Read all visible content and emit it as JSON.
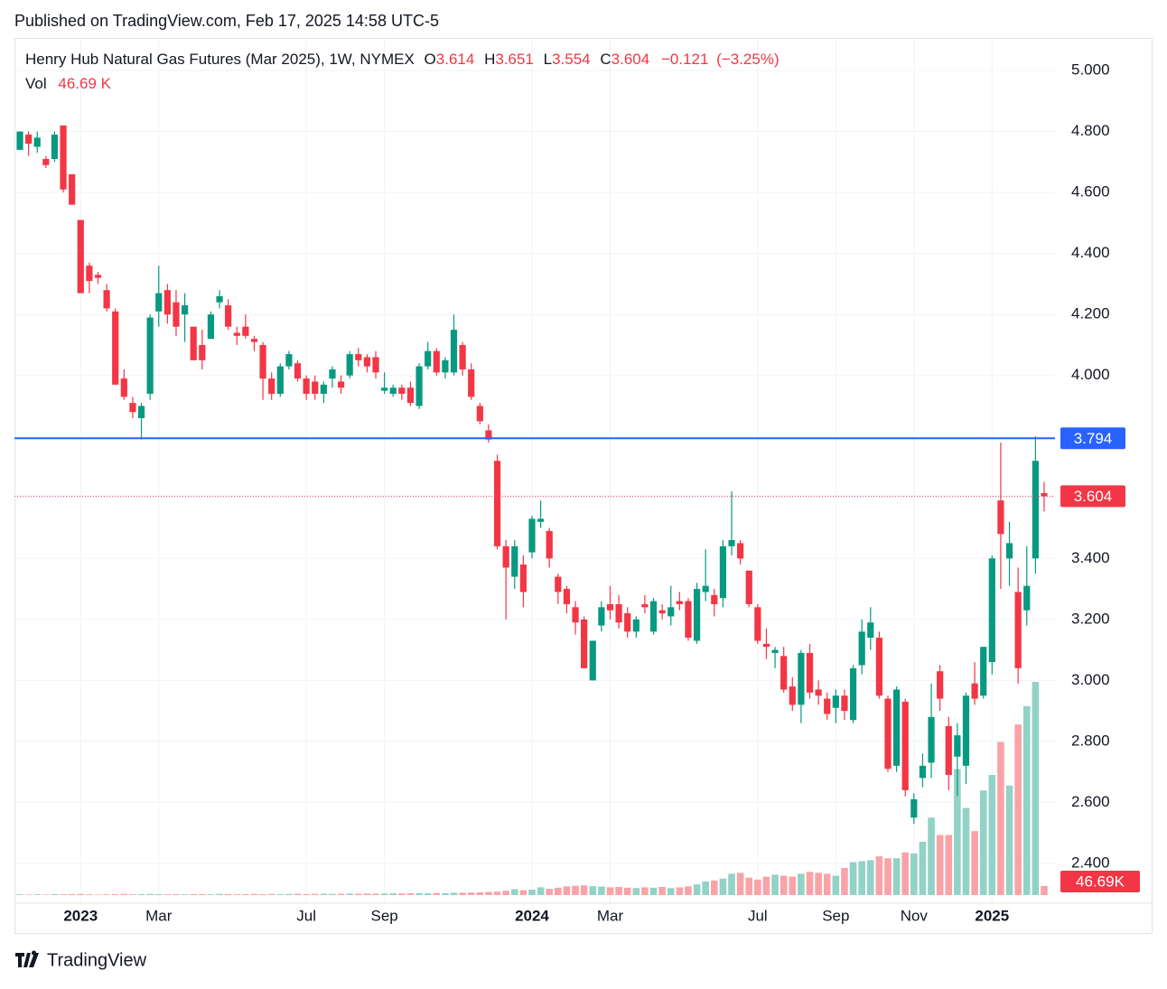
{
  "published": "Published on TradingView.com, Feb 17, 2025 14:58 UTC-5",
  "brand": "TradingView",
  "chart_data": {
    "type": "candlestick",
    "title": "Henry Hub Natural Gas Futures (Mar 2025), 1W, NYMEX",
    "ohlc_keys": [
      "O",
      "H",
      "L",
      "C"
    ],
    "change": {
      "value": -0.121,
      "label": "−0.121"
    },
    "change_pct": {
      "value": -3.25,
      "label": "(−3.25%)"
    },
    "volume_name": "Vol",
    "last_volume": {
      "value": 46.69,
      "label": "46.69 K",
      "tag": "46.69K"
    },
    "up_color": "#089981",
    "down_color": "#f23645",
    "volume_up_color": "#92d2c7",
    "volume_down_color": "#f9a3a8",
    "hline": {
      "value": 3.794,
      "color": "#2962ff"
    },
    "ylim": [
      2.296,
      5.107
    ],
    "yticks": [
      {
        "value": 2.4,
        "label": "2.400"
      },
      {
        "value": 2.6,
        "label": "2.600"
      },
      {
        "value": 2.8,
        "label": "2.800"
      },
      {
        "value": 3.0,
        "label": "3.000"
      },
      {
        "value": 3.2,
        "label": "3.200"
      },
      {
        "value": 3.4,
        "label": "3.400"
      },
      {
        "value": 3.6,
        "label": "3.600"
      },
      {
        "value": 3.8,
        "label": "3.800"
      },
      {
        "value": 4.0,
        "label": "4.000"
      },
      {
        "value": 4.2,
        "label": "4.200"
      },
      {
        "value": 4.4,
        "label": "4.400"
      },
      {
        "value": 4.6,
        "label": "4.600"
      },
      {
        "value": 4.8,
        "label": "4.800"
      },
      {
        "value": 5.0,
        "label": "5.000"
      }
    ],
    "grid": true,
    "categories": [
      null,
      null,
      null,
      null,
      null,
      null,
      null,
      "2023",
      null,
      null,
      null,
      null,
      null,
      null,
      null,
      null,
      "Mar",
      null,
      null,
      null,
      null,
      null,
      null,
      null,
      null,
      null,
      null,
      null,
      null,
      null,
      null,
      null,
      null,
      "Jul",
      null,
      null,
      null,
      null,
      null,
      null,
      null,
      null,
      "Sep",
      null,
      null,
      null,
      null,
      null,
      null,
      null,
      null,
      null,
      null,
      null,
      null,
      null,
      null,
      null,
      null,
      "2024",
      null,
      null,
      null,
      null,
      null,
      null,
      null,
      null,
      "Mar",
      null,
      null,
      null,
      null,
      null,
      null,
      null,
      null,
      null,
      null,
      null,
      null,
      null,
      null,
      null,
      null,
      "Jul",
      null,
      null,
      null,
      null,
      null,
      null,
      null,
      null,
      "Sep",
      null,
      null,
      null,
      null,
      null,
      null,
      null,
      null,
      "Nov",
      null,
      null,
      null,
      null,
      null,
      null,
      null,
      null,
      "2025",
      null,
      null,
      null,
      null,
      null,
      null
    ],
    "series": [
      {
        "open": [
          4.74,
          4.79,
          4.75,
          4.71,
          4.71,
          4.82,
          4.66,
          4.51,
          4.36,
          4.33,
          4.28,
          4.21,
          3.99,
          3.91,
          3.86,
          3.94,
          4.21,
          4.28,
          4.24,
          4.2,
          4.16,
          4.1,
          4.12,
          4.24,
          4.23,
          4.14,
          4.16,
          4.12,
          4.1,
          3.99,
          3.94,
          4.03,
          4.04,
          3.99,
          3.98,
          3.94,
          3.99,
          3.98,
          4.0,
          4.07,
          4.06,
          4.06,
          3.95,
          3.94,
          3.96,
          3.96,
          3.9,
          4.03,
          4.08,
          4.01,
          4.01,
          4.1,
          4.02,
          3.9,
          3.82,
          3.72,
          3.44,
          3.34,
          3.38,
          3.42,
          3.52,
          3.49,
          3.34,
          3.3,
          3.24,
          3.2,
          3.0,
          3.18,
          3.25,
          3.25,
          3.22,
          3.16,
          3.25,
          3.16,
          3.23,
          3.21,
          3.26,
          3.26,
          3.13,
          3.29,
          3.28,
          3.27,
          3.44,
          3.45,
          3.36,
          3.24,
          3.12,
          3.09,
          3.08,
          2.98,
          2.92,
          3.09,
          2.97,
          2.94,
          2.91,
          2.95,
          2.87,
          3.05,
          3.14,
          3.14,
          2.94,
          2.72,
          2.93,
          2.55,
          2.68,
          2.73,
          3.03,
          2.85,
          2.75,
          2.72,
          2.99,
          2.95,
          3.06,
          3.59,
          3.4,
          3.29,
          3.23,
          3.4,
          3.614
        ],
        "high": [
          4.8,
          4.8,
          4.8,
          4.72,
          4.8,
          4.82,
          4.66,
          4.51,
          4.37,
          4.34,
          4.3,
          4.22,
          4.02,
          3.93,
          3.91,
          4.2,
          4.36,
          4.3,
          4.28,
          4.27,
          4.16,
          4.15,
          4.21,
          4.28,
          4.25,
          4.16,
          4.2,
          4.13,
          4.11,
          4.01,
          4.04,
          4.08,
          4.05,
          4.0,
          4.0,
          3.98,
          4.03,
          4.0,
          4.08,
          4.09,
          4.07,
          4.08,
          4.01,
          3.97,
          3.97,
          3.98,
          4.04,
          4.11,
          4.09,
          4.06,
          4.2,
          4.11,
          4.04,
          3.91,
          3.84,
          3.74,
          3.46,
          3.46,
          3.41,
          3.54,
          3.59,
          3.5,
          3.35,
          3.31,
          3.26,
          3.21,
          3.13,
          3.26,
          3.31,
          3.28,
          3.24,
          3.21,
          3.28,
          3.27,
          3.25,
          3.31,
          3.29,
          3.27,
          3.32,
          3.43,
          3.3,
          3.46,
          3.62,
          3.46,
          3.36,
          3.25,
          3.17,
          3.11,
          3.11,
          3.01,
          3.1,
          3.12,
          3.0,
          2.96,
          2.97,
          2.97,
          3.05,
          3.2,
          3.24,
          3.16,
          2.95,
          2.98,
          2.94,
          2.63,
          2.76,
          2.99,
          3.05,
          2.88,
          2.86,
          2.96,
          3.06,
          3.11,
          3.41,
          3.78,
          3.52,
          3.37,
          3.44,
          3.8,
          3.651
        ],
        "low": [
          4.74,
          4.72,
          4.73,
          4.68,
          4.7,
          4.6,
          4.56,
          4.27,
          4.27,
          4.3,
          4.21,
          3.97,
          3.92,
          3.86,
          3.79,
          3.92,
          4.16,
          4.17,
          4.13,
          4.11,
          4.05,
          4.02,
          4.12,
          4.22,
          4.15,
          4.1,
          4.12,
          4.08,
          3.92,
          3.92,
          3.93,
          4.02,
          3.98,
          3.92,
          3.92,
          3.91,
          3.96,
          3.94,
          3.99,
          4.03,
          4.01,
          3.99,
          3.94,
          3.93,
          3.92,
          3.9,
          3.89,
          4.02,
          4.0,
          3.99,
          4.0,
          4.0,
          3.92,
          3.84,
          3.78,
          3.43,
          3.2,
          3.3,
          3.24,
          3.4,
          3.5,
          3.37,
          3.25,
          3.22,
          3.15,
          3.04,
          3.0,
          3.16,
          3.2,
          3.17,
          3.14,
          3.14,
          3.22,
          3.15,
          3.2,
          3.18,
          3.23,
          3.13,
          3.12,
          3.26,
          3.21,
          3.24,
          3.41,
          3.38,
          3.24,
          3.12,
          3.07,
          3.04,
          2.96,
          2.9,
          2.86,
          2.94,
          2.92,
          2.87,
          2.86,
          2.87,
          2.86,
          3.02,
          3.1,
          2.94,
          2.7,
          2.7,
          2.62,
          2.53,
          2.65,
          2.68,
          2.9,
          2.64,
          2.62,
          2.66,
          2.92,
          2.94,
          3.02,
          3.3,
          3.31,
          2.99,
          3.18,
          3.35,
          3.554
        ],
        "close": [
          4.8,
          4.76,
          4.78,
          4.69,
          4.79,
          4.61,
          4.56,
          4.27,
          4.31,
          4.32,
          4.22,
          3.97,
          3.93,
          3.88,
          3.9,
          4.19,
          4.27,
          4.2,
          4.16,
          4.23,
          4.05,
          4.05,
          4.2,
          4.26,
          4.16,
          4.13,
          4.13,
          4.11,
          3.99,
          3.94,
          4.03,
          4.07,
          3.99,
          3.94,
          3.94,
          3.97,
          4.02,
          3.96,
          4.07,
          4.05,
          4.03,
          4.01,
          3.96,
          3.96,
          3.94,
          3.91,
          4.03,
          4.08,
          4.01,
          4.05,
          4.15,
          4.02,
          3.93,
          3.85,
          3.79,
          3.44,
          3.37,
          3.44,
          3.29,
          3.53,
          3.53,
          3.4,
          3.29,
          3.25,
          3.19,
          3.04,
          3.13,
          3.24,
          3.23,
          3.19,
          3.16,
          3.2,
          3.24,
          3.26,
          3.22,
          3.24,
          3.25,
          3.14,
          3.3,
          3.31,
          3.25,
          3.44,
          3.46,
          3.4,
          3.25,
          3.13,
          3.11,
          3.1,
          2.97,
          2.92,
          3.09,
          2.96,
          2.95,
          2.89,
          2.95,
          2.9,
          3.04,
          3.16,
          3.19,
          2.95,
          2.71,
          2.97,
          2.64,
          2.61,
          2.72,
          2.88,
          2.94,
          2.69,
          2.82,
          2.95,
          2.94,
          3.11,
          3.4,
          3.48,
          3.45,
          3.04,
          3.31,
          3.72,
          3.604
        ],
        "volume": [
          4,
          3,
          4,
          3,
          5,
          4,
          5,
          6,
          4,
          3,
          4,
          5,
          6,
          4,
          5,
          6,
          5,
          4,
          5,
          4,
          5,
          5,
          4,
          6,
          5,
          4,
          5,
          6,
          5,
          6,
          5,
          6,
          7,
          5,
          6,
          7,
          6,
          7,
          8,
          7,
          8,
          7,
          8,
          9,
          8,
          9,
          10,
          9,
          11,
          10,
          12,
          12,
          13,
          14,
          16,
          18,
          22,
          30,
          25,
          28,
          40,
          32,
          38,
          45,
          48,
          50,
          46,
          44,
          40,
          42,
          38,
          36,
          40,
          38,
          42,
          36,
          40,
          45,
          55,
          70,
          75,
          85,
          110,
          115,
          90,
          80,
          95,
          105,
          100,
          95,
          110,
          120,
          115,
          110,
          100,
          140,
          170,
          175,
          180,
          200,
          190,
          190,
          220,
          215,
          275,
          400,
          310,
          310,
          650,
          450,
          330,
          540,
          620,
          790,
          565,
          880,
          975,
          1100,
          46.69
        ]
      }
    ]
  }
}
